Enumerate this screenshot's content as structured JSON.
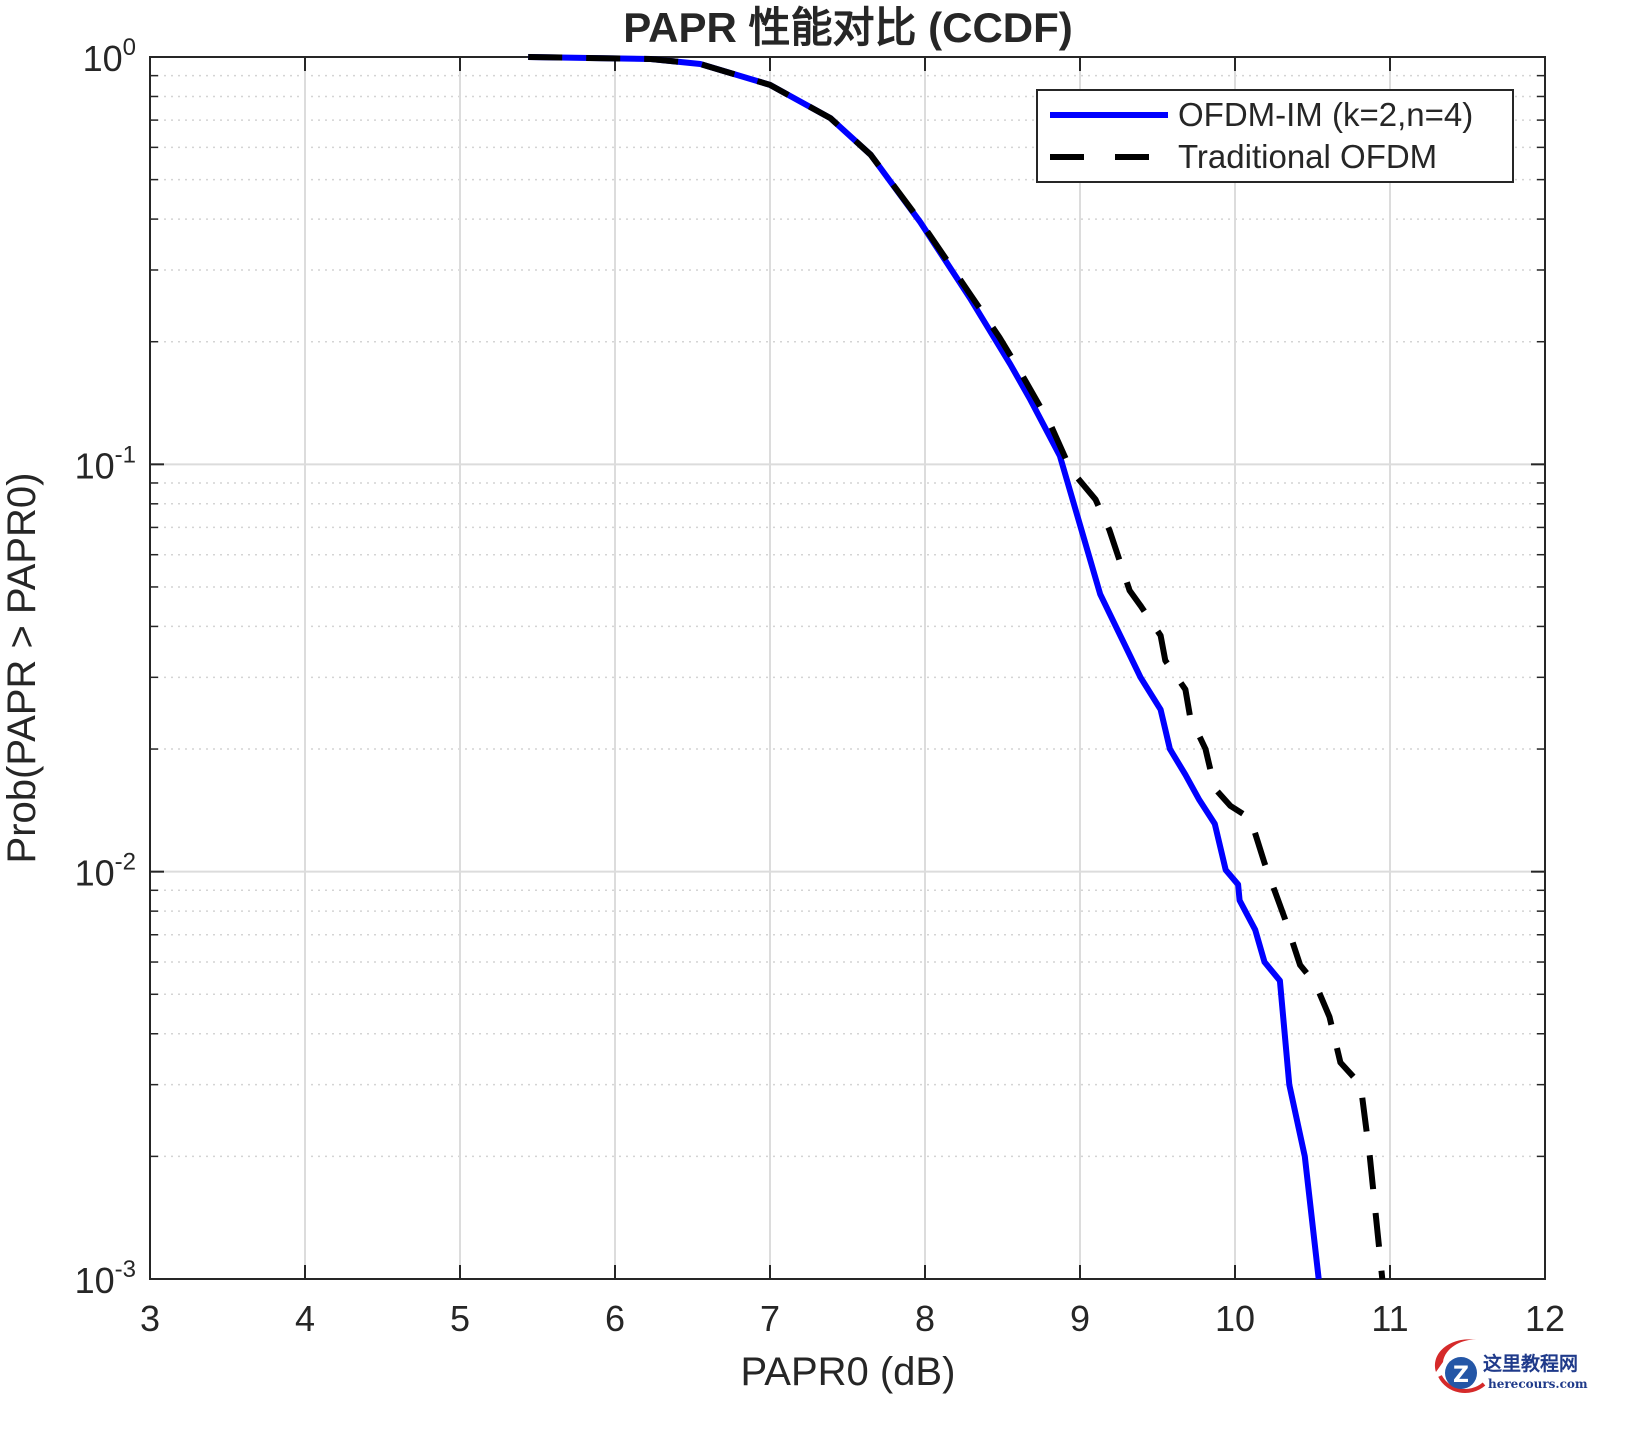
{
  "chart_data": {
    "type": "line",
    "title": "PAPR 性能对比 (CCDF)",
    "xlabel": "PAPR0 (dB)",
    "ylabel": "Prob(PAPR > PAPR0)",
    "xlim": [
      3,
      12
    ],
    "ylim": [
      0.001,
      1
    ],
    "yscale": "log",
    "grid": true,
    "minor_grid": true,
    "legend_position": "northeast",
    "x_ticks": [
      "3",
      "4",
      "5",
      "6",
      "7",
      "8",
      "9",
      "10",
      "11",
      "12"
    ],
    "y_ticks": [
      {
        "base": "10",
        "exp": "0"
      },
      {
        "base": "10",
        "exp": "-1"
      },
      {
        "base": "10",
        "exp": "-2"
      },
      {
        "base": "10",
        "exp": "-3"
      }
    ],
    "series": [
      {
        "name": "OFDM-IM (k=2,n=4)",
        "color": "#0000ff",
        "style": "solid",
        "x": [
          5.44,
          6.23,
          6.55,
          7.0,
          7.39,
          7.65,
          7.97,
          8.29,
          8.55,
          8.68,
          8.87,
          9.0,
          9.13,
          9.29,
          9.39,
          9.52,
          9.58,
          9.68,
          9.77,
          9.87,
          9.94,
          10.02,
          10.03,
          10.13,
          10.19,
          10.29,
          10.35,
          10.45,
          10.54
        ],
        "y": [
          1.0,
          0.989,
          0.961,
          0.854,
          0.708,
          0.575,
          0.393,
          0.256,
          0.176,
          0.144,
          0.105,
          0.071,
          0.048,
          0.036,
          0.03,
          0.025,
          0.02,
          0.0173,
          0.015,
          0.0131,
          0.0101,
          0.0093,
          0.0085,
          0.0072,
          0.006,
          0.0054,
          0.003,
          0.002,
          0.001
        ]
      },
      {
        "name": "Traditional OFDM",
        "color": "#000000",
        "style": "dashed",
        "x": [
          5.44,
          6.23,
          6.55,
          7.0,
          7.39,
          7.65,
          7.97,
          8.29,
          8.48,
          8.61,
          8.81,
          8.94,
          9.1,
          9.19,
          9.32,
          9.39,
          9.52,
          9.55,
          9.68,
          9.71,
          9.81,
          9.87,
          9.97,
          10.1,
          10.19,
          10.32,
          10.42,
          10.52,
          10.61,
          10.68,
          10.81,
          10.87,
          10.95
        ],
        "y": [
          1.0,
          0.989,
          0.961,
          0.854,
          0.708,
          0.575,
          0.395,
          0.262,
          0.205,
          0.17,
          0.125,
          0.097,
          0.082,
          0.069,
          0.049,
          0.045,
          0.038,
          0.033,
          0.028,
          0.024,
          0.02,
          0.016,
          0.0145,
          0.0135,
          0.0105,
          0.0077,
          0.0059,
          0.0053,
          0.0044,
          0.0034,
          0.003,
          0.002,
          0.001
        ]
      }
    ]
  },
  "watermark": {
    "cn": "这里教程网",
    "en": "herecours.com"
  }
}
